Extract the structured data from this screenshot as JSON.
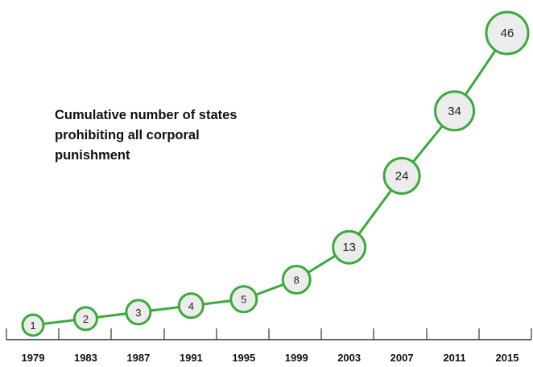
{
  "chart_data": {
    "type": "line",
    "title_lines": [
      "Cumulative number of states",
      "prohibiting all corporal",
      "punishment"
    ],
    "x": [
      "1979",
      "1983",
      "1987",
      "1991",
      "1995",
      "1999",
      "2003",
      "2007",
      "2011",
      "2015"
    ],
    "series": [
      {
        "values": [
          1,
          2,
          3,
          4,
          5,
          8,
          13,
          24,
          34,
          46
        ]
      }
    ],
    "data_labels": [
      "1",
      "2",
      "3",
      "4",
      "5",
      "8",
      "13",
      "24",
      "34",
      "46"
    ],
    "show_data_labels": true,
    "grid": false,
    "legend": "none",
    "colors": {
      "line": "#3aaa3a",
      "marker_fill": "#ececec",
      "axis": "#333333",
      "text": "#111111"
    }
  }
}
